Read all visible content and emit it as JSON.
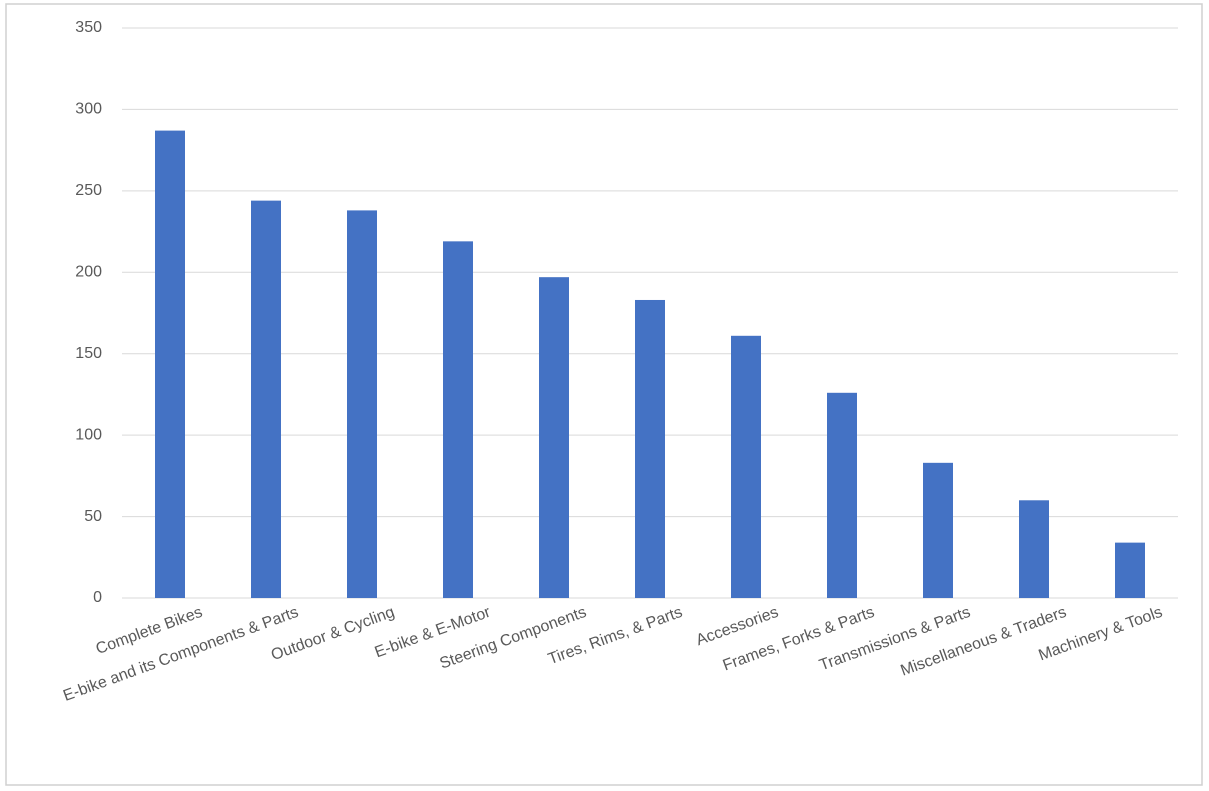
{
  "chart_data": {
    "type": "bar",
    "categories": [
      "Complete Bikes",
      "E-bike and its Components & Parts",
      "Outdoor & Cycling",
      "E-bike & E-Motor",
      "Steering Components",
      "Tires, Rims, & Parts",
      "Accessories",
      "Frames, Forks & Parts",
      "Transmissions & Parts",
      "Miscellaneous & Traders",
      "Machinery & Tools"
    ],
    "values": [
      287,
      244,
      238,
      219,
      197,
      183,
      161,
      126,
      83,
      60,
      34
    ],
    "color": "#4472c4",
    "ylim": [
      0,
      350
    ],
    "yticks": [
      0,
      50,
      100,
      150,
      200,
      250,
      300,
      350
    ],
    "grid": true
  }
}
